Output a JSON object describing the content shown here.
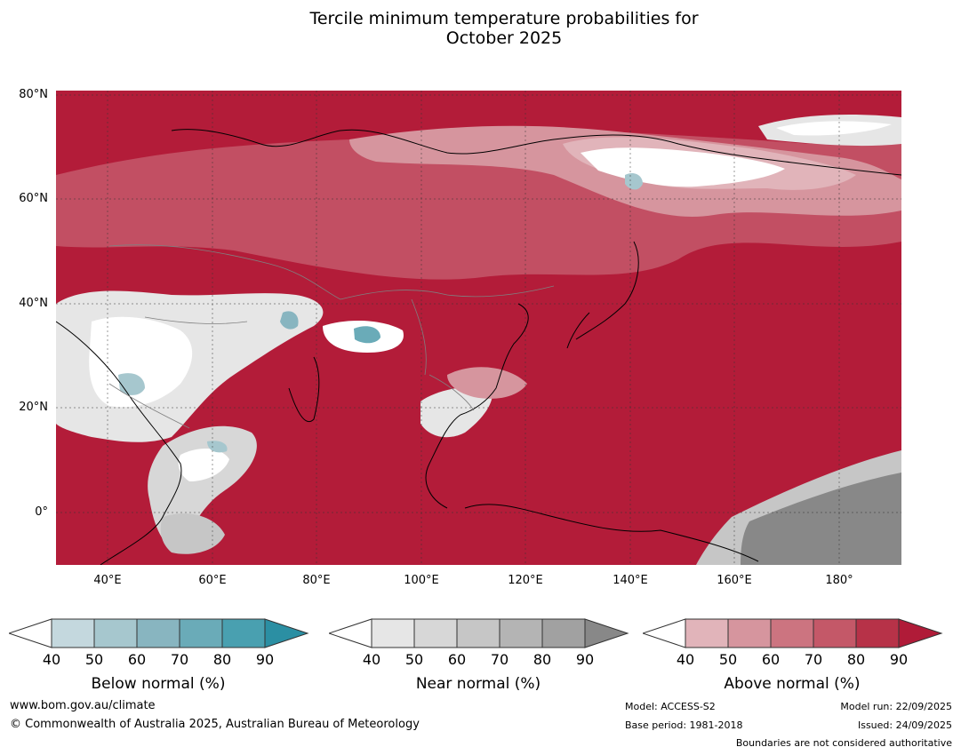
{
  "title_line1": "Tercile minimum temperature probabilities for",
  "title_line2": "October 2025",
  "map": {
    "lat_labels": [
      "80°N",
      "60°N",
      "40°N",
      "20°N",
      "0°"
    ],
    "lon_labels": [
      "40°E",
      "60°E",
      "80°E",
      "100°E",
      "120°E",
      "140°E",
      "160°E",
      "180°"
    ],
    "lat_range": [
      -10,
      81
    ],
    "lon_range": [
      30,
      192
    ]
  },
  "legends": [
    {
      "title": "Below normal (%)",
      "ticks": [
        "40",
        "50",
        "60",
        "70",
        "80",
        "90"
      ],
      "colors": [
        "#ffffff",
        "#c4d8de",
        "#a6c7ce",
        "#88b5c0",
        "#6aabb8",
        "#49a0b0",
        "#2b8fa3"
      ]
    },
    {
      "title": "Near normal (%)",
      "ticks": [
        "40",
        "50",
        "60",
        "70",
        "80",
        "90"
      ],
      "colors": [
        "#ffffff",
        "#e6e6e6",
        "#d7d7d7",
        "#c6c6c6",
        "#b4b4b4",
        "#a1a1a1",
        "#888888"
      ]
    },
    {
      "title": "Above normal (%)",
      "ticks": [
        "40",
        "50",
        "60",
        "70",
        "80",
        "90"
      ],
      "colors": [
        "#ffffff",
        "#e1b4ba",
        "#d6959e",
        "#cc7480",
        "#c45868",
        "#b73248",
        "#b01b38"
      ]
    }
  ],
  "footer": {
    "website": "www.bom.gov.au/climate",
    "copyright": "© Commonwealth of Australia 2025, Australian Bureau of Meteorology",
    "model": "Model: ACCESS-S2",
    "base_period": "Base period: 1981-2018",
    "model_run": "Model run: 22/09/2025",
    "issued": "Issued: 24/09/2025",
    "disclaimer": "Boundaries are not considered authoritative"
  }
}
